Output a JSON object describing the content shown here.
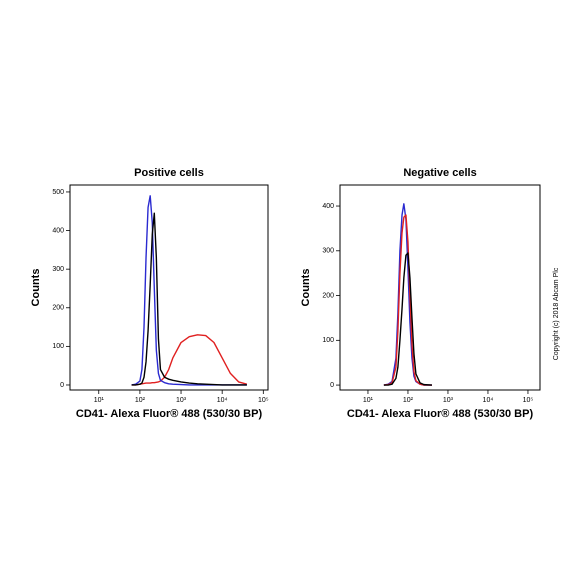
{
  "chart_data": [
    {
      "type": "line",
      "title": "Positive cells",
      "x_label": "CD41- Alexa Fluor® 488  (530/30 BP)",
      "y_label": "Counts",
      "log_x": true,
      "xlim": [
        2,
        130000
      ],
      "ylim": [
        -13,
        518
      ],
      "xticks": [
        {
          "value": 10,
          "label": "10¹"
        },
        {
          "value": 100,
          "label": "10²"
        },
        {
          "value": 1000,
          "label": "10³"
        },
        {
          "value": 10000,
          "label": "10⁴"
        },
        {
          "value": 100000,
          "label": "10⁵"
        }
      ],
      "yticks": [
        0,
        100,
        200,
        300,
        400,
        500
      ],
      "x": [
        63,
        79,
        100,
        112,
        126,
        141,
        158,
        178,
        200,
        224,
        251,
        282,
        316,
        398,
        501,
        631,
        1000,
        1585,
        2512,
        3981,
        6310,
        10000,
        15849,
        25119,
        39811
      ],
      "series": [
        {
          "color": "#e02020",
          "values": [
            0,
            0,
            2,
            3,
            4,
            5,
            5,
            5,
            6,
            6,
            7,
            8,
            10,
            20,
            40,
            70,
            110,
            125,
            130,
            128,
            110,
            70,
            30,
            8,
            2
          ]
        },
        {
          "color": "#2a2ad0",
          "values": [
            0,
            2,
            10,
            40,
            150,
            330,
            460,
            490,
            420,
            250,
            90,
            30,
            12,
            6,
            3,
            2,
            1,
            0,
            0,
            0,
            0,
            0,
            0,
            0,
            0
          ]
        },
        {
          "color": "#000000",
          "values": [
            0,
            0,
            2,
            5,
            20,
            60,
            140,
            260,
            390,
            445,
            330,
            120,
            40,
            20,
            15,
            12,
            8,
            5,
            3,
            2,
            1,
            0,
            0,
            0,
            0
          ]
        }
      ]
    },
    {
      "type": "line",
      "title": "Negative cells",
      "x_label": "CD41- Alexa Fluor® 488  (530/30 BP)",
      "y_label": "Counts",
      "log_x": true,
      "xlim": [
        2,
        200000
      ],
      "ylim": [
        -11,
        447
      ],
      "xticks": [
        {
          "value": 10,
          "label": "10¹"
        },
        {
          "value": 100,
          "label": "10²"
        },
        {
          "value": 1000,
          "label": "10³"
        },
        {
          "value": 10000,
          "label": "10⁴"
        },
        {
          "value": 100000,
          "label": "10⁵"
        }
      ],
      "yticks": [
        0,
        100,
        200,
        300,
        400
      ],
      "x": [
        25,
        32,
        40,
        50,
        56,
        63,
        71,
        79,
        89,
        100,
        112,
        126,
        141,
        158,
        200,
        251,
        398
      ],
      "series": [
        {
          "color": "#2a2ad0",
          "values": [
            0,
            2,
            8,
            60,
            160,
            300,
            380,
            405,
            370,
            260,
            140,
            60,
            20,
            8,
            2,
            0,
            0
          ]
        },
        {
          "color": "#e02020",
          "values": [
            0,
            1,
            5,
            40,
            120,
            250,
            340,
            375,
            380,
            320,
            200,
            90,
            30,
            10,
            2,
            0,
            0
          ]
        },
        {
          "color": "#000000",
          "values": [
            0,
            0,
            2,
            15,
            40,
            100,
            170,
            240,
            290,
            295,
            240,
            150,
            70,
            25,
            5,
            1,
            0
          ]
        }
      ]
    }
  ],
  "copyright": "Copyright (c) 2018 Abcam Plc"
}
